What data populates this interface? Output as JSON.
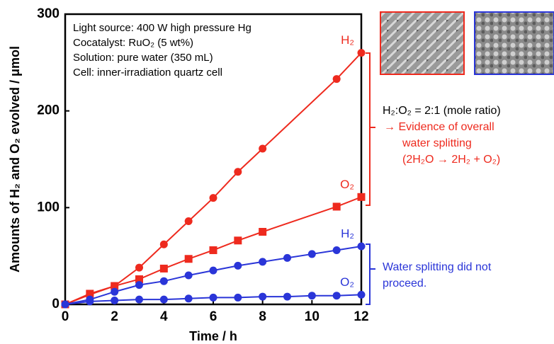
{
  "chart_data": {
    "type": "scatter",
    "xlabel": "Time / h",
    "ylabel": "Amounts of H₂ and O₂ evolved / μmol",
    "xlim": [
      0,
      12
    ],
    "xticks": [
      0,
      2,
      4,
      6,
      8,
      10,
      12
    ],
    "ylim": [
      0,
      300
    ],
    "yticks": [
      0,
      100,
      200,
      300
    ],
    "info": [
      "Light source: 400 W high pressure Hg",
      "Cocatalyst: RuO₂ (5 wt%)",
      "Solution: pure water (350 mL)",
      "Cell: inner-irradiation quartz cell"
    ],
    "annotation_red": [
      "H₂:O₂ = 2:1 (mole ratio)",
      "→ Evidence of overall",
      "water splitting",
      "(2H₂O → 2H₂ + O₂)"
    ],
    "annotation_blue": [
      "Water splitting did not",
      "proceed."
    ],
    "series": [
      {
        "name": "H₂",
        "color": "#ee2a1e",
        "marker": "circle",
        "x": [
          0,
          1,
          2,
          3,
          4,
          5,
          6,
          7,
          8,
          11,
          12
        ],
        "values": [
          0,
          10,
          19,
          38,
          62,
          86,
          110,
          137,
          161,
          233,
          260
        ]
      },
      {
        "name": "O₂",
        "color": "#ee2a1e",
        "marker": "square",
        "x": [
          0,
          1,
          2,
          3,
          4,
          5,
          6,
          7,
          8,
          11,
          12
        ],
        "values": [
          0,
          11,
          19,
          26,
          37,
          47,
          56,
          66,
          75,
          101,
          111
        ]
      },
      {
        "name": "H₂",
        "color": "#2a35d8",
        "marker": "circle",
        "x": [
          0,
          1,
          2,
          3,
          4,
          5,
          6,
          7,
          8,
          9,
          10,
          11,
          12
        ],
        "values": [
          0,
          5,
          13,
          20,
          24,
          30,
          35,
          40,
          44,
          48,
          52,
          56,
          60
        ]
      },
      {
        "name": "O₂",
        "color": "#2a35d8",
        "marker": "circle",
        "x": [
          0,
          1,
          2,
          3,
          4,
          5,
          6,
          7,
          8,
          9,
          10,
          11,
          12
        ],
        "values": [
          0,
          3,
          4,
          5,
          5,
          6,
          7,
          7,
          8,
          8,
          9,
          9,
          10
        ]
      }
    ]
  }
}
